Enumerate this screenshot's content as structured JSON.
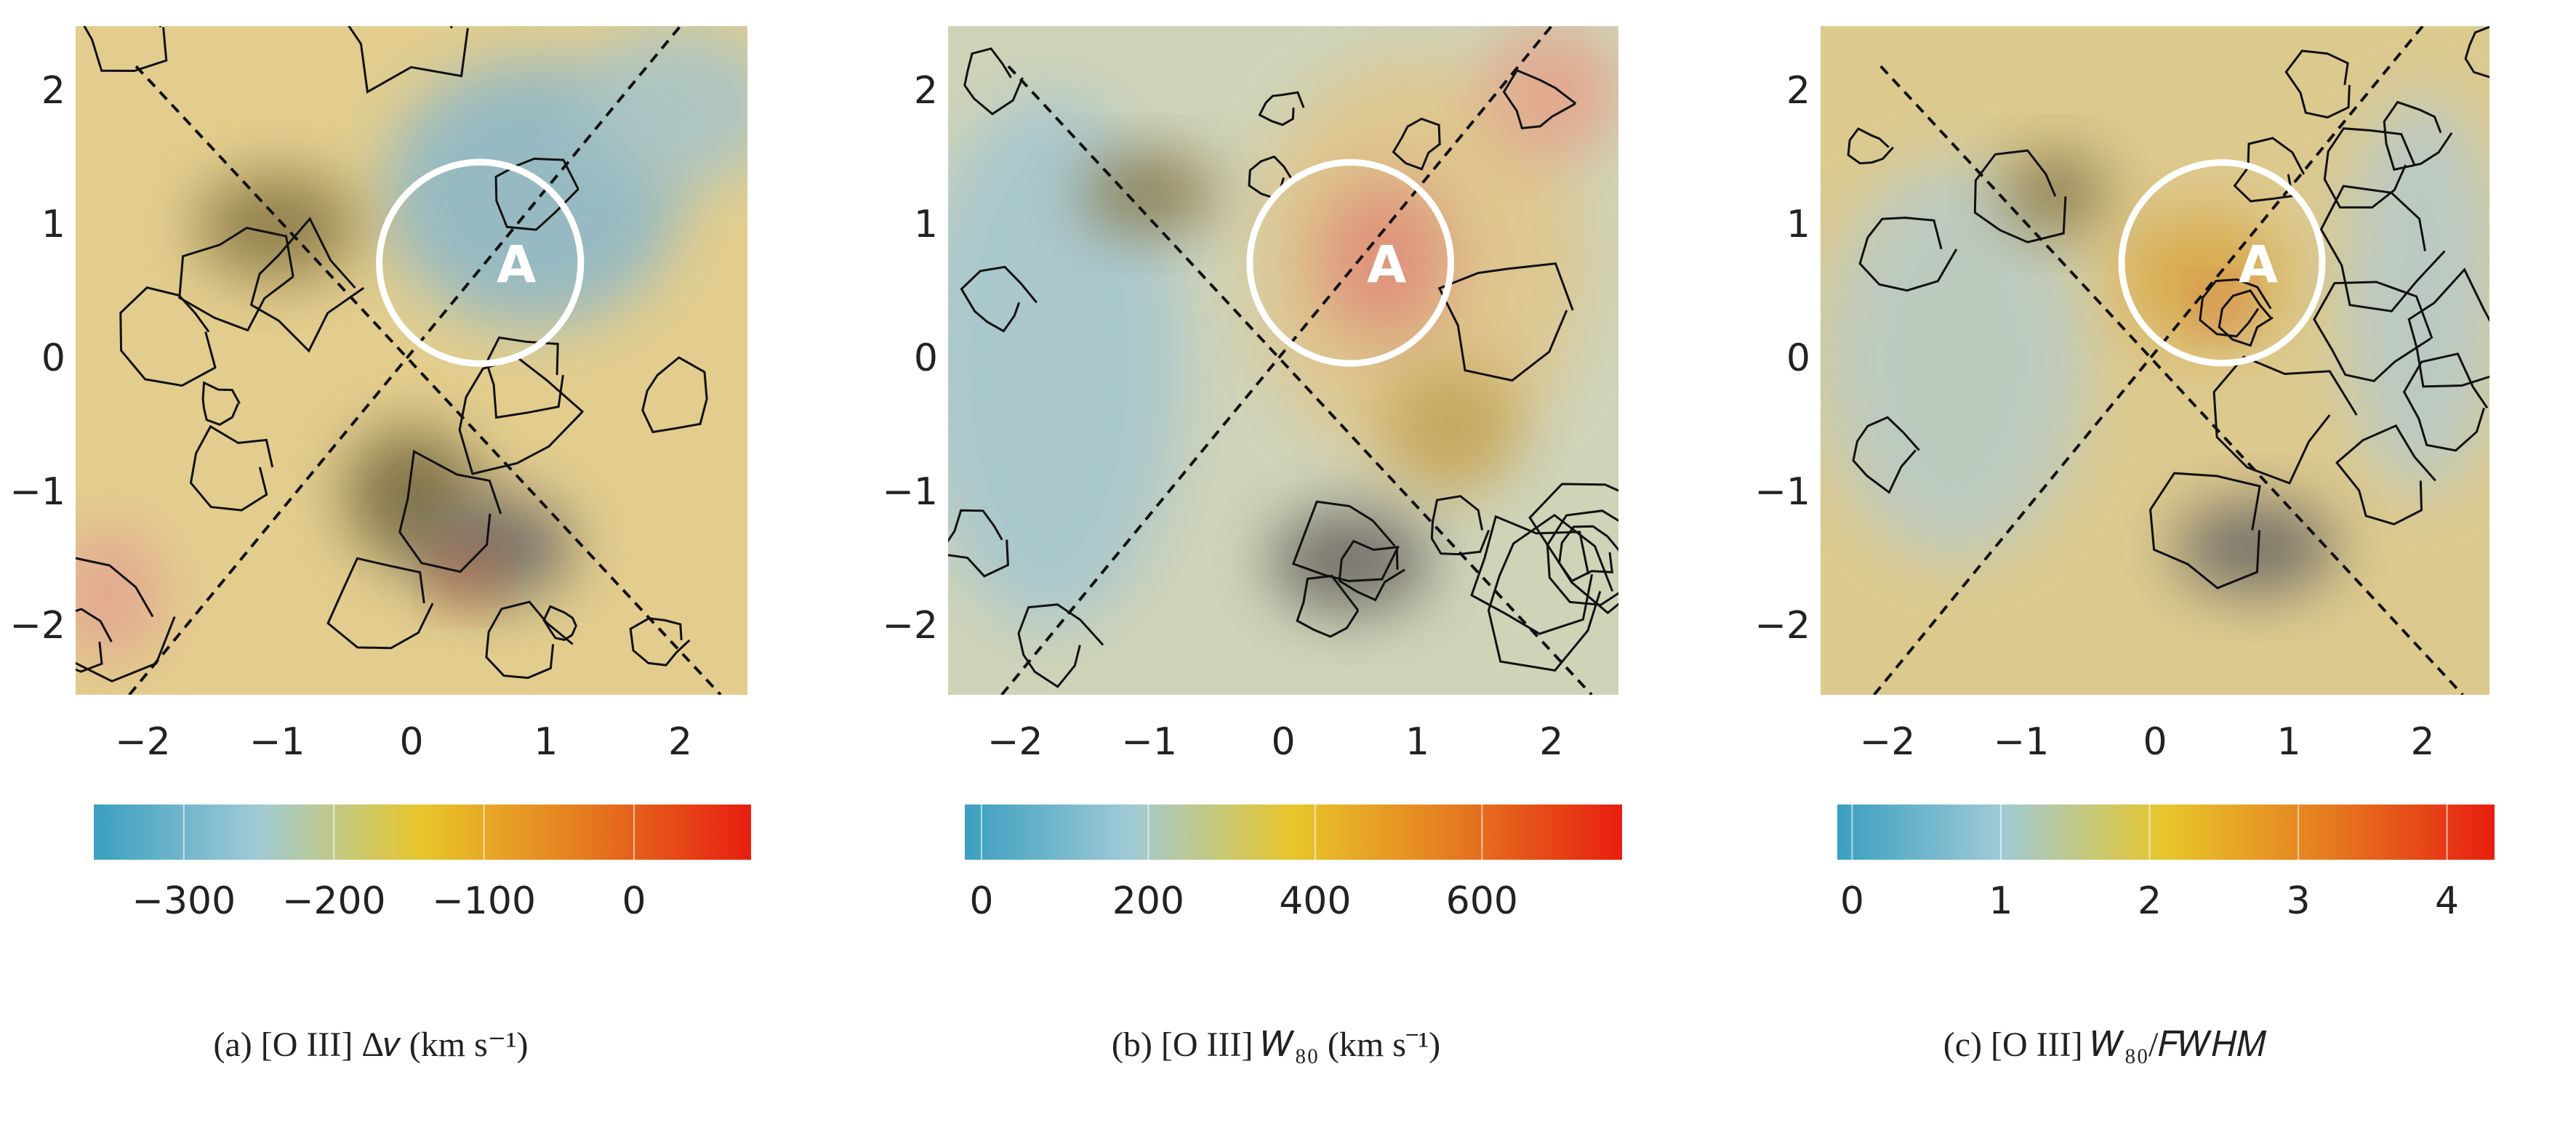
{
  "chart_data": [
    {
      "type": "image",
      "caption": "(a) [O III] Δ𝑣 (km s⁻¹)",
      "xlim": [
        -2.5,
        2.5
      ],
      "ylim": [
        -2.5,
        2.5
      ],
      "xticks": [
        {
          "value": -2,
          "label": "−2"
        },
        {
          "value": -1,
          "label": "−1"
        },
        0,
        1,
        2
      ],
      "yticks": [
        {
          "value": -2,
          "label": "−2"
        },
        {
          "value": -1,
          "label": "−1"
        },
        0,
        1,
        2
      ],
      "annotation": {
        "text": "A",
        "x": 0.51,
        "y": 0.73,
        "r": 0.75
      },
      "colorbar": {
        "lim": [
          -360,
          78
        ],
        "colors": [
          "#3a9fc0",
          "#9fcad6",
          "#e8c62a",
          "#e57a20",
          "#e81e10"
        ],
        "ticks": [
          {
            "value": -300,
            "label": "−300"
          },
          {
            "value": -200,
            "label": "−200"
          },
          {
            "value": -100,
            "label": "−100"
          },
          0
        ]
      }
    },
    {
      "type": "image",
      "caption": "(b) [O III] 𝑊₈₀  (km s⁻¹)",
      "xlim": [
        -2.5,
        2.5
      ],
      "ylim": [
        -2.5,
        2.5
      ],
      "xticks": [
        {
          "value": -2,
          "label": "−2"
        },
        {
          "value": -1,
          "label": "−1"
        },
        0,
        1,
        2
      ],
      "yticks": [
        {
          "value": -2,
          "label": "−2"
        },
        {
          "value": -1,
          "label": "−1"
        },
        0,
        1,
        2
      ],
      "annotation": {
        "text": "A",
        "x": 0.5,
        "y": 0.73,
        "r": 0.75
      },
      "colorbar": {
        "lim": [
          -20,
          768
        ],
        "colors": [
          "#3a9fc0",
          "#9fcad6",
          "#e8c62a",
          "#e57a20",
          "#e81e10"
        ],
        "ticks": [
          0,
          200,
          400,
          600
        ]
      }
    },
    {
      "type": "image",
      "caption": "(c) [O III] 𝑊₈₀/𝐹𝑊𝐻𝑀",
      "xlim": [
        -2.5,
        2.5
      ],
      "ylim": [
        -2.5,
        2.5
      ],
      "xticks": [
        {
          "value": -2,
          "label": "−2"
        },
        {
          "value": -1,
          "label": "−1"
        },
        0,
        1,
        2
      ],
      "yticks": [
        {
          "value": -2,
          "label": "−2"
        },
        {
          "value": -1,
          "label": "−1"
        },
        0,
        1,
        2
      ],
      "annotation": {
        "text": "A",
        "x": 0.5,
        "y": 0.73,
        "r": 0.75
      },
      "colorbar": {
        "lim": [
          -0.1,
          4.32
        ],
        "colors": [
          "#3a9fc0",
          "#9fcad6",
          "#e8c62a",
          "#e57a20",
          "#e81e10"
        ],
        "ticks": [
          0,
          1,
          2,
          3,
          4
        ]
      }
    }
  ]
}
